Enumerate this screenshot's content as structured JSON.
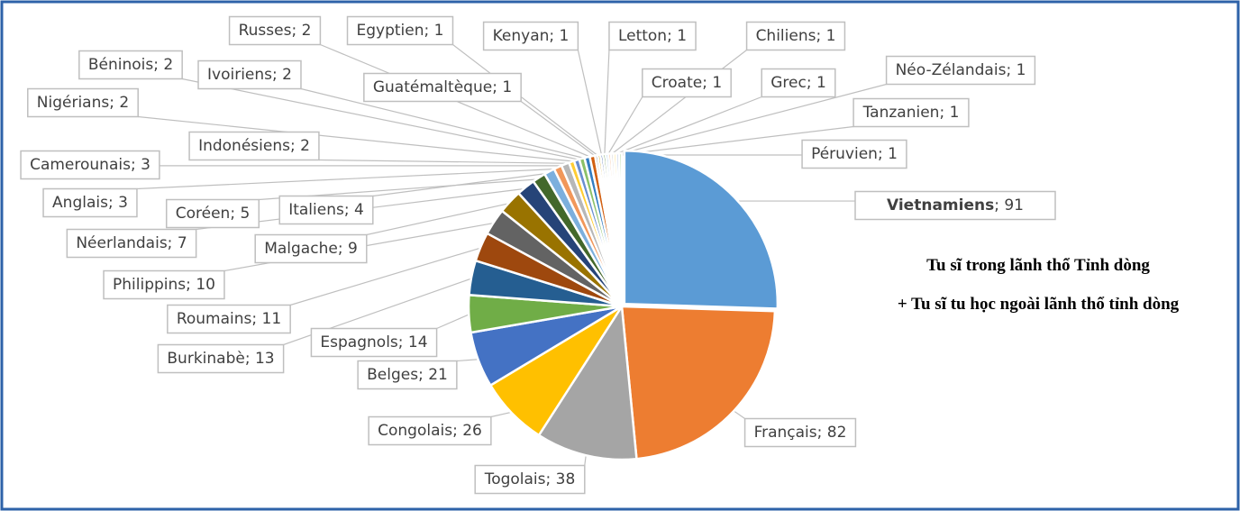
{
  "chart_data": {
    "type": "pie",
    "title_lines": [
      "Tu sĩ trong lãnh thổ Tỉnh dòng",
      "+ Tu sĩ tu học ngoài lãnh thổ tỉnh dòng"
    ],
    "label_separator": "; ",
    "bold_label_index": 0,
    "categories": [
      "Vietnamiens",
      "Français",
      "Togolais",
      "Congolais",
      "Belges",
      "Espagnols",
      "Burkinabè",
      "Roumains",
      "Philippins",
      "Malgache",
      "Néerlandais",
      "Coréen",
      "Italiens",
      "Anglais",
      "Camerounais",
      "Indonésiens",
      "Nigérians",
      "Béninois",
      "Ivoiriens",
      "Russes",
      "Guatémaltèque",
      "Egyptien",
      "Kenyan",
      "Letton",
      "Croate",
      "Chiliens",
      "Grec",
      "Néo-Zélandais",
      "Tanzanien",
      "Péruvien"
    ],
    "values": [
      91,
      82,
      38,
      26,
      21,
      14,
      13,
      11,
      10,
      9,
      7,
      5,
      4,
      3,
      3,
      2,
      2,
      2,
      2,
      2,
      1,
      1,
      1,
      1,
      1,
      1,
      1,
      1,
      1,
      1
    ],
    "colors": [
      "#5b9bd5",
      "#ed7d31",
      "#a5a5a5",
      "#ffc000",
      "#4472c4",
      "#70ad47",
      "#255e91",
      "#9e480e",
      "#636363",
      "#997300",
      "#264478",
      "#43682b",
      "#7cafdd",
      "#f1975a",
      "#b7b7b7",
      "#ffcd33",
      "#698ed0",
      "#8cc168",
      "#327dc2",
      "#d26012",
      "#848484",
      "#cc9a00",
      "#335aa1",
      "#5a8a39",
      "#9dc3e6",
      "#f4b183",
      "#c9c9c9",
      "#ffd966",
      "#8faadc",
      "#a9d18e"
    ]
  }
}
